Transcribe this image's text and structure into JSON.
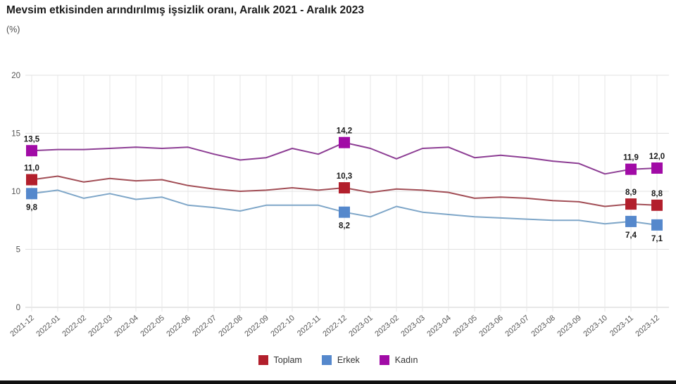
{
  "page": {
    "background": "#ffffff",
    "bottom_bar_color": "#111111"
  },
  "chart_data": {
    "type": "line",
    "title": "Mevsim etkisinden arındırılmış işsizlik oranı, Aralık 2021 - Aralık 2023",
    "unit_label": "(%)",
    "xlabel": "",
    "ylabel": "(%)",
    "ylim": [
      0,
      20
    ],
    "yticks": [
      0,
      5,
      10,
      15,
      20
    ],
    "grid": true,
    "legend_position": "bottom",
    "categories": [
      "2021-12",
      "2022-01",
      "2022-02",
      "2022-03",
      "2022-04",
      "2022-05",
      "2022-06",
      "2022-07",
      "2022-08",
      "2022-09",
      "2022-10",
      "2022-11",
      "2022-12",
      "2023-01",
      "2023-02",
      "2023-03",
      "2023-04",
      "2023-05",
      "2023-06",
      "2023-07",
      "2023-08",
      "2023-09",
      "2023-10",
      "2023-11",
      "2023-12"
    ],
    "series": [
      {
        "name": "Toplam",
        "line_color": "#a24e56",
        "marker_color": "#b21f2c",
        "values": [
          11.0,
          11.3,
          10.8,
          11.1,
          10.9,
          11.0,
          10.5,
          10.2,
          10.0,
          10.1,
          10.3,
          10.1,
          10.3,
          9.9,
          10.2,
          10.1,
          9.9,
          9.4,
          9.5,
          9.4,
          9.2,
          9.1,
          8.7,
          8.9,
          8.8
        ],
        "labeled_points": [
          {
            "index": 0,
            "label": "11,0",
            "position": "above"
          },
          {
            "index": 12,
            "label": "10,3",
            "position": "above"
          },
          {
            "index": 23,
            "label": "8,9",
            "position": "above"
          },
          {
            "index": 24,
            "label": "8,8",
            "position": "above"
          }
        ]
      },
      {
        "name": "Erkek",
        "line_color": "#7ea6c8",
        "marker_color": "#5588cc",
        "values": [
          9.8,
          10.1,
          9.4,
          9.8,
          9.3,
          9.5,
          8.8,
          8.6,
          8.3,
          8.8,
          8.8,
          8.8,
          8.2,
          7.8,
          8.7,
          8.2,
          8.0,
          7.8,
          7.7,
          7.6,
          7.5,
          7.5,
          7.2,
          7.4,
          7.1
        ],
        "labeled_points": [
          {
            "index": 0,
            "label": "9,8",
            "position": "below"
          },
          {
            "index": 12,
            "label": "8,2",
            "position": "below"
          },
          {
            "index": 23,
            "label": "7,4",
            "position": "below"
          },
          {
            "index": 24,
            "label": "7,1",
            "position": "below"
          }
        ]
      },
      {
        "name": "Kadın",
        "line_color": "#8d3e94",
        "marker_color": "#a10ba6",
        "values": [
          13.5,
          13.6,
          13.6,
          13.7,
          13.8,
          13.7,
          13.8,
          13.2,
          12.7,
          12.9,
          13.7,
          13.2,
          14.2,
          13.7,
          12.8,
          13.7,
          13.8,
          12.9,
          13.1,
          12.9,
          12.6,
          12.4,
          11.5,
          11.9,
          12.0
        ],
        "labeled_points": [
          {
            "index": 0,
            "label": "13,5",
            "position": "above"
          },
          {
            "index": 12,
            "label": "14,2",
            "position": "above"
          },
          {
            "index": 23,
            "label": "11,9",
            "position": "above"
          },
          {
            "index": 24,
            "label": "12,0",
            "position": "above"
          }
        ]
      }
    ]
  }
}
